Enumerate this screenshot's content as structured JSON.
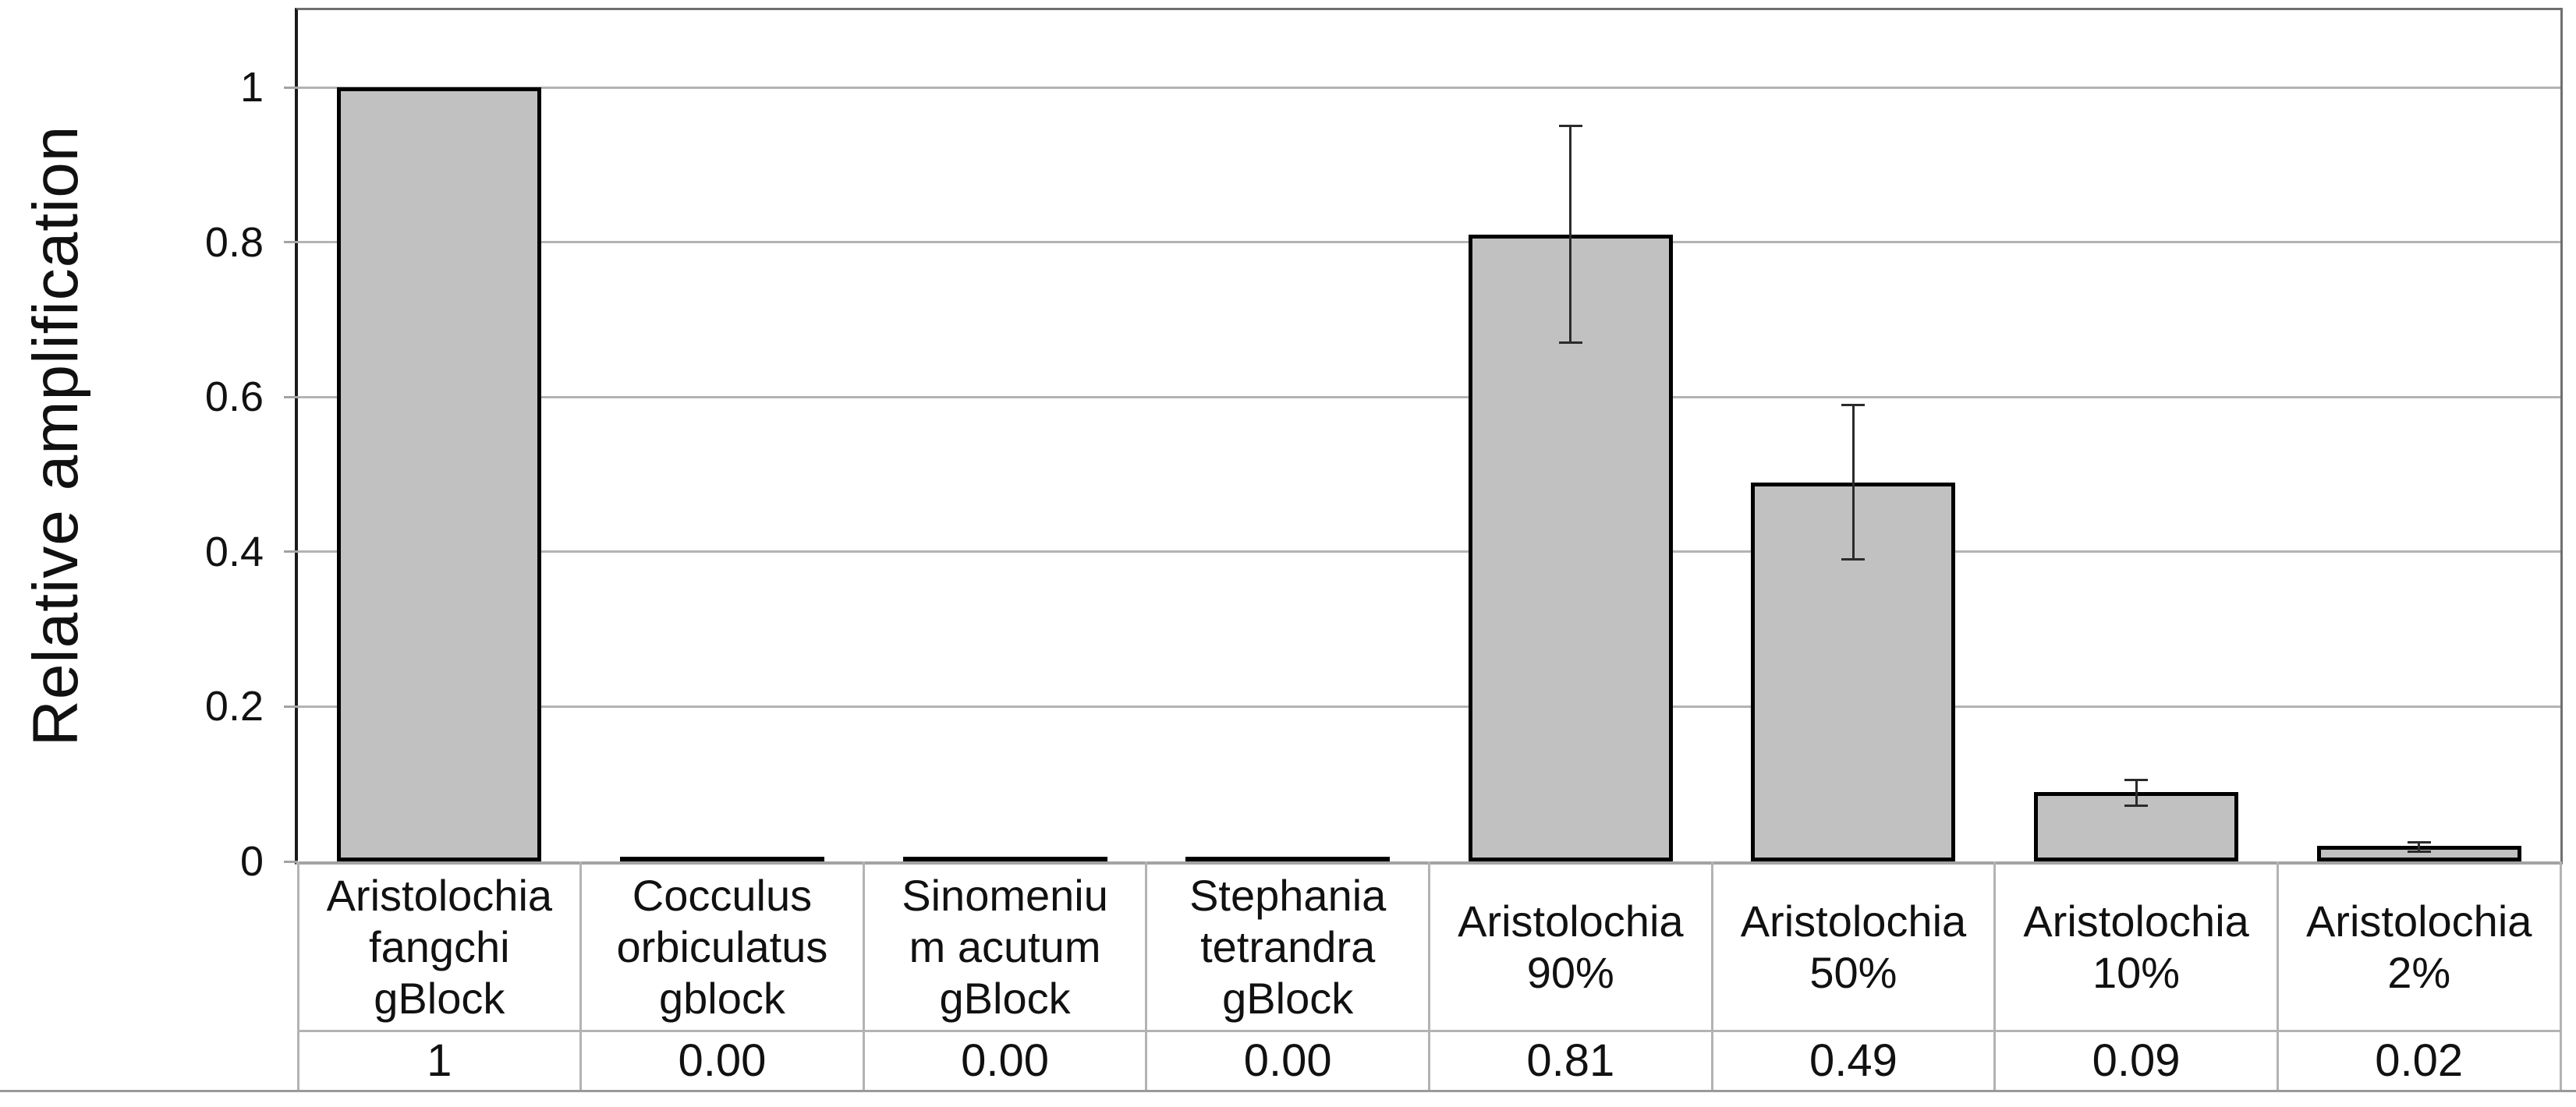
{
  "figure": {
    "background": "#ffffff"
  },
  "chart_data": {
    "type": "bar",
    "title": "",
    "ylabel": "Relative amplification",
    "xlabel": "",
    "ylim": [
      0,
      1.1
    ],
    "yticks": [
      0,
      0.2,
      0.4,
      0.6,
      0.8,
      1
    ],
    "ytick_labels": [
      "0",
      "0.2",
      "0.4",
      "0.6",
      "0.8",
      "1"
    ],
    "grid": "horizontal",
    "legend": "none",
    "categories": [
      "Aristolochia fangchi gBlock",
      "Cocculus orbiculatus gblock",
      "Sinomenium acutum gBlock",
      "Stephania tetrandra gBlock",
      "Aristolochia 90%",
      "Aristolochia 50%",
      "Aristolochia 10%",
      "Aristolochia 2%"
    ],
    "category_lines": [
      [
        "Aristolochia",
        "fangchi",
        "gBlock"
      ],
      [
        "Cocculus",
        "orbiculatus",
        "gblock"
      ],
      [
        "Sinomeniu",
        "m acutum",
        "gBlock"
      ],
      [
        "Stephania",
        "tetrandra",
        "gBlock"
      ],
      [
        "Aristolochia",
        "90%"
      ],
      [
        "Aristolochia",
        "50%"
      ],
      [
        "Aristolochia",
        "10%"
      ],
      [
        "Aristolochia",
        "2%"
      ]
    ],
    "values": [
      1,
      0,
      0,
      0,
      0.81,
      0.49,
      0.09,
      0.02
    ],
    "data_table_row": [
      "1",
      "0.00",
      "0.00",
      "0.00",
      "0.81",
      "0.49",
      "0.09",
      "0.02"
    ],
    "error_bars": [
      null,
      null,
      null,
      null,
      {
        "low": 0.67,
        "high": 0.95
      },
      {
        "low": 0.39,
        "high": 0.59
      },
      {
        "low": 0.072,
        "high": 0.105
      },
      {
        "low": 0.013,
        "high": 0.025
      }
    ],
    "colors": {
      "bar_fill": "#c1c1c1",
      "bar_border": "#000000",
      "gridline": "#b3b3b3",
      "axis_line": "#1a1a1a",
      "plot_border": "#6f6f6f",
      "baseline": "#a3a3a3",
      "table_line": "#b3b3b3",
      "table_bottom_line": "#9a9a9a",
      "error_bar": "#2b2b2b",
      "text": "#111111",
      "background": "#ffffff"
    }
  }
}
